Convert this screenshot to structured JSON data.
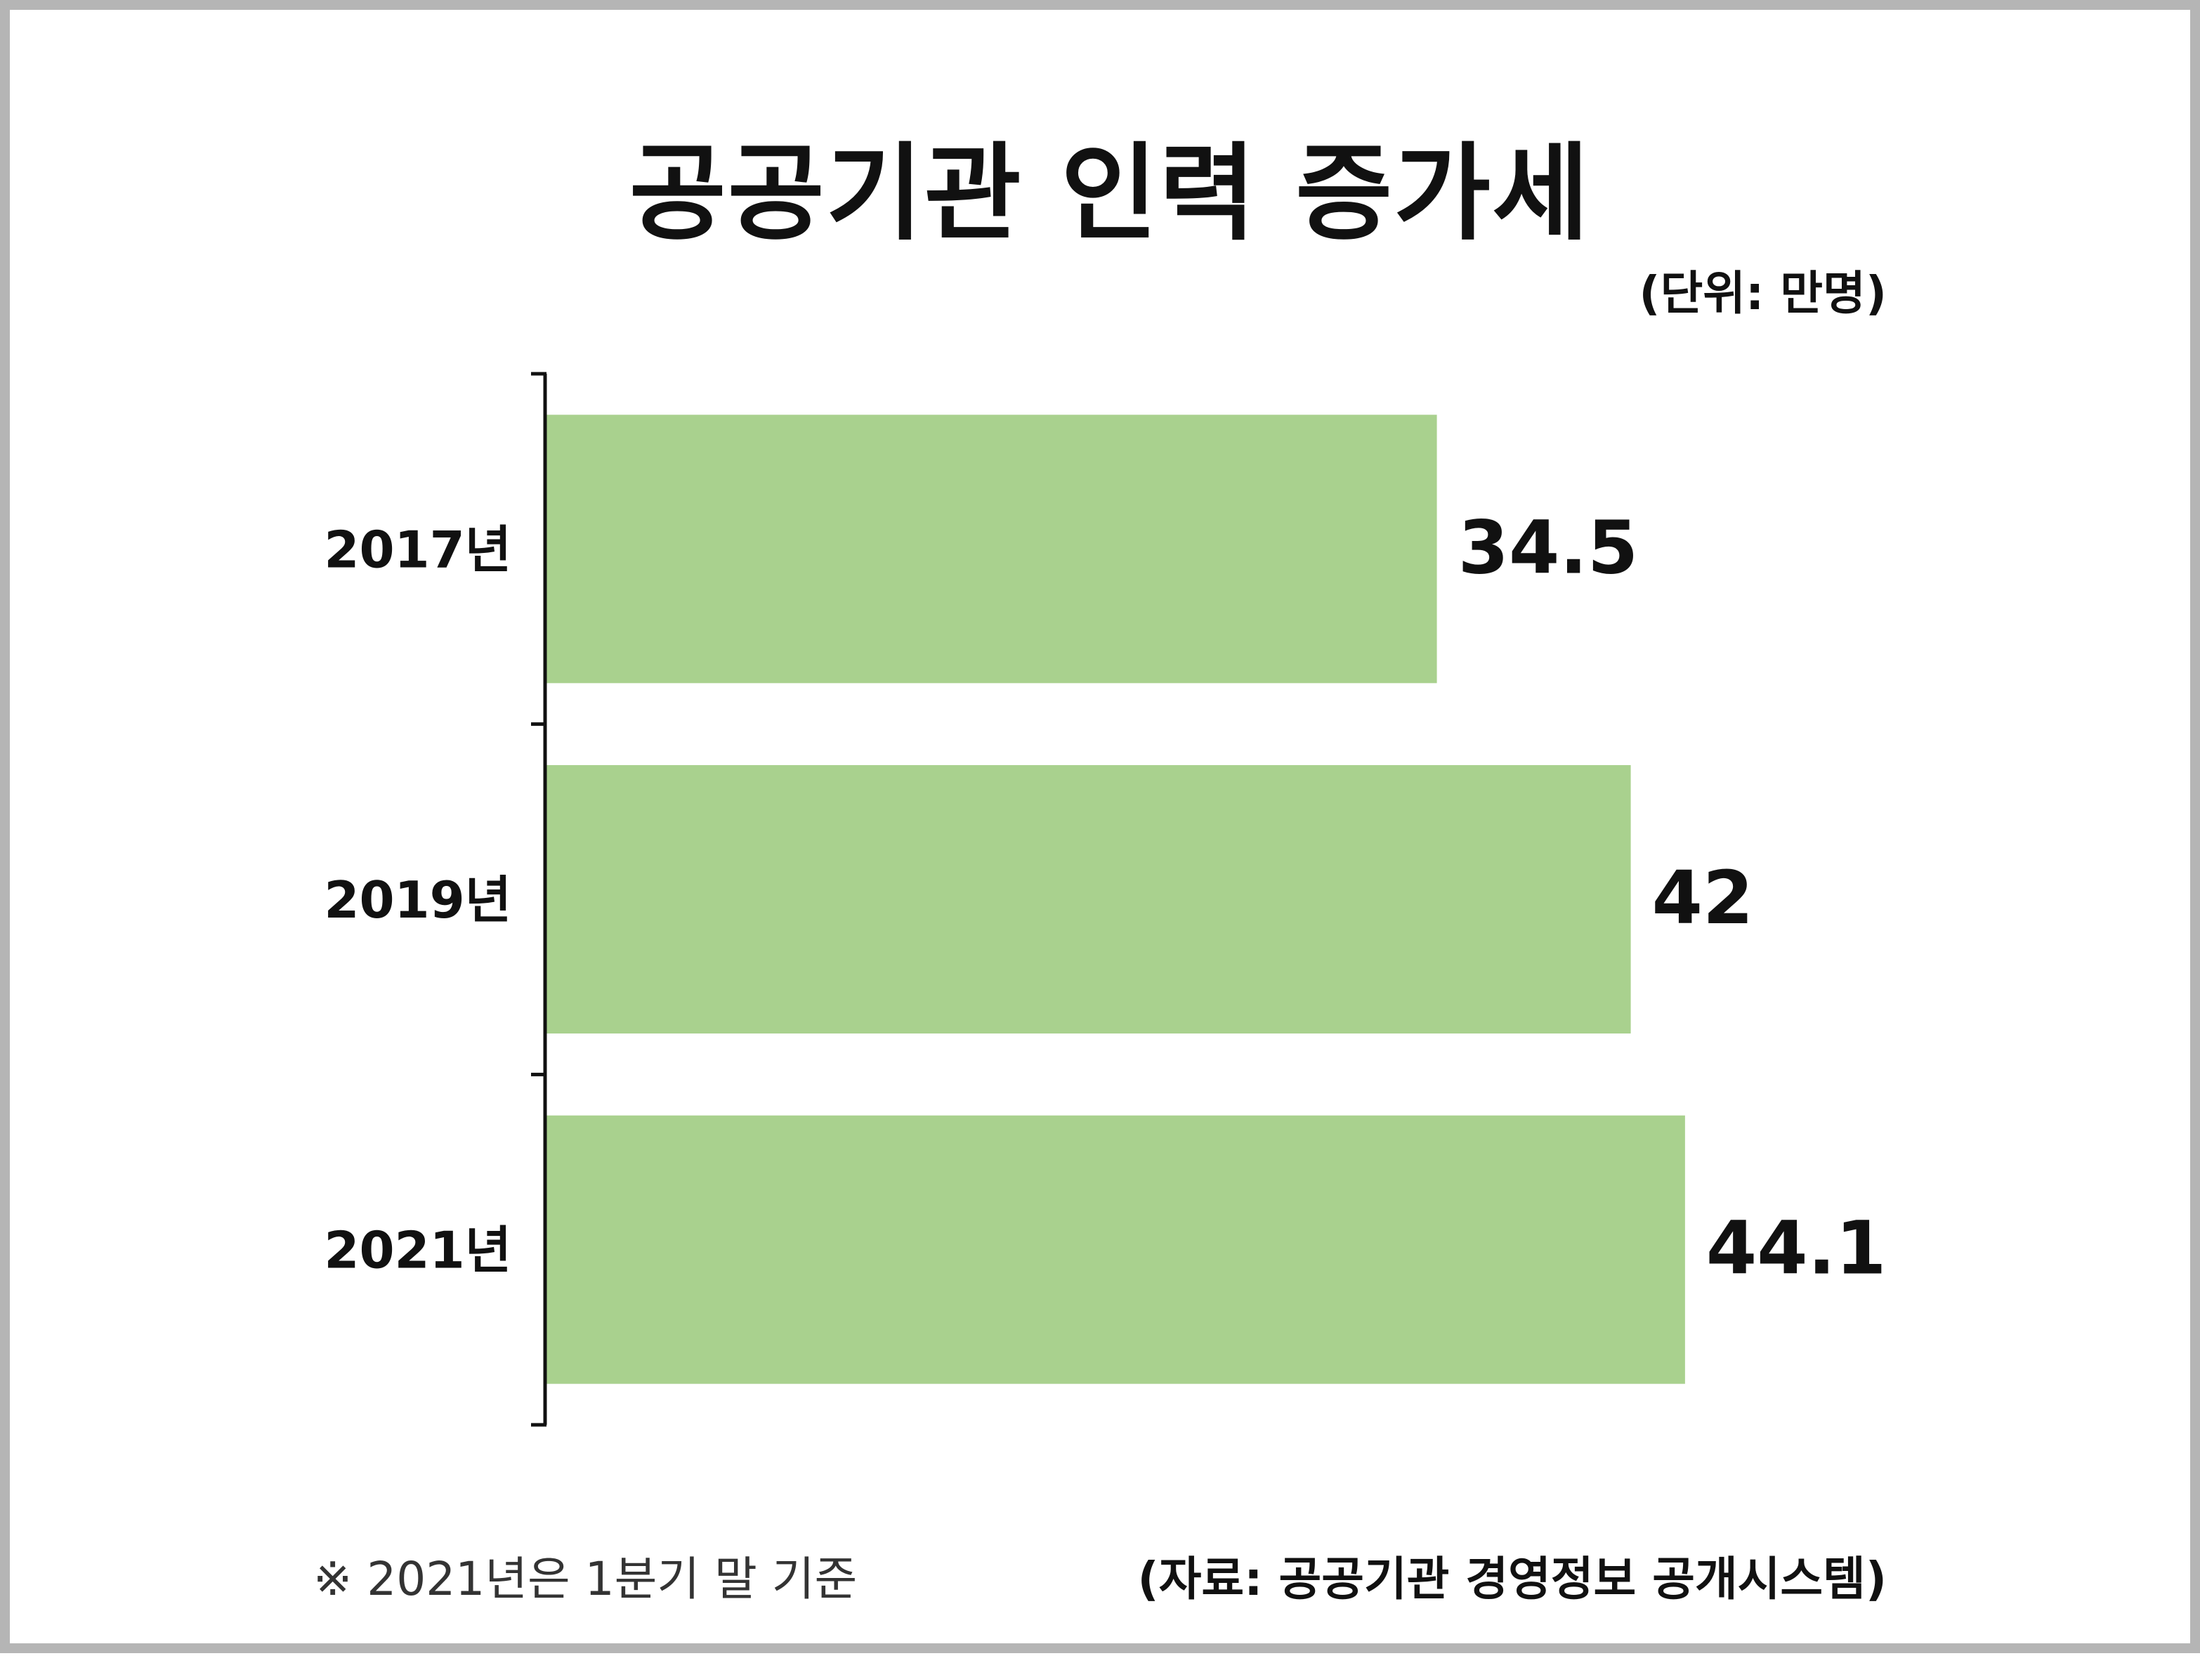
{
  "title": "공공기관 인력 증가세",
  "unit": "(단위: 만명)",
  "footnote": "※ 2021년은 1분기 말 기준",
  "source": "(자료: 공공기관 경영정보 공개시스템)",
  "colors": {
    "bar": "#a9d18e",
    "text": "#111111",
    "axis": "#111111",
    "border": "#b5b5b5"
  },
  "chart_data": {
    "type": "bar",
    "orientation": "horizontal",
    "categories": [
      "2017년",
      "2019년",
      "2021년"
    ],
    "values": [
      34.5,
      42,
      44.1
    ],
    "value_labels": [
      "34.5",
      "42",
      "44.1"
    ],
    "xlim": [
      0,
      50
    ],
    "grid": false,
    "legend": "none"
  }
}
